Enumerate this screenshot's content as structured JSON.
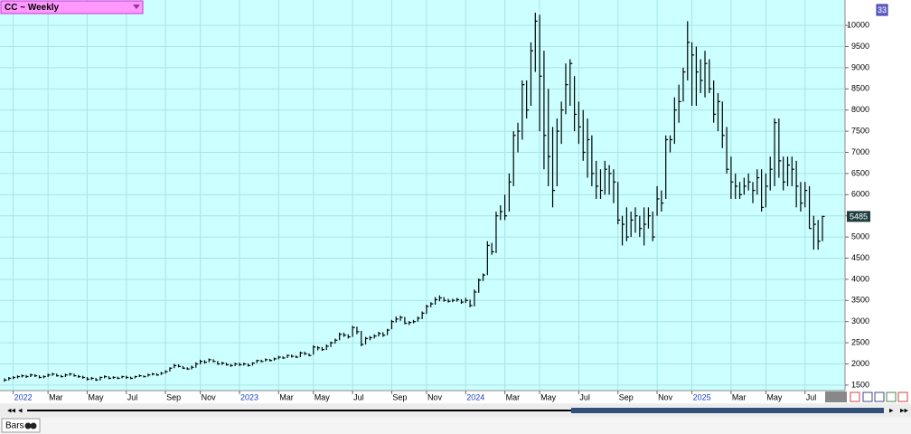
{
  "chart_data": {
    "type": "hlc",
    "title": "CC ~ Weekly",
    "badge": "33",
    "tab": "Bars",
    "color": "#000000",
    "background": "#ccffff",
    "grid": true,
    "ylim": [
      1370,
      10600
    ],
    "yticks": [
      1500,
      2000,
      2500,
      3000,
      3500,
      4000,
      4500,
      5000,
      5500,
      6000,
      6500,
      7000,
      7500,
      8000,
      8500,
      9000,
      9500,
      10000
    ],
    "xticks": [
      {
        "value": 2,
        "label": "2022"
      },
      {
        "value": 10,
        "label": "Mar"
      },
      {
        "value": 19,
        "label": "May"
      },
      {
        "value": 28,
        "label": "Jul"
      },
      {
        "value": 37,
        "label": "Sep"
      },
      {
        "value": 45,
        "label": "Nov"
      },
      {
        "value": 54,
        "label": "2023"
      },
      {
        "value": 63,
        "label": "Mar"
      },
      {
        "value": 71,
        "label": "May"
      },
      {
        "value": 80,
        "label": "Jul"
      },
      {
        "value": 89,
        "label": "Sep"
      },
      {
        "value": 97,
        "label": "Nov"
      },
      {
        "value": 106,
        "label": "2024"
      },
      {
        "value": 115,
        "label": "Mar"
      },
      {
        "value": 123,
        "label": "May"
      },
      {
        "value": 132,
        "label": "Jul"
      },
      {
        "value": 141,
        "label": "Sep"
      },
      {
        "value": 150,
        "label": "Nov"
      },
      {
        "value": 158,
        "label": "2025"
      },
      {
        "value": 167,
        "label": "Mar"
      },
      {
        "value": 175,
        "label": "May"
      },
      {
        "value": 184,
        "label": "Jul"
      }
    ],
    "high": [
      1660,
      1690,
      1710,
      1730,
      1750,
      1740,
      1770,
      1760,
      1730,
      1730,
      1770,
      1790,
      1770,
      1740,
      1770,
      1790,
      1770,
      1740,
      1720,
      1690,
      1690,
      1670,
      1700,
      1730,
      1710,
      1710,
      1700,
      1720,
      1720,
      1700,
      1720,
      1750,
      1730,
      1770,
      1790,
      1780,
      1810,
      1850,
      1920,
      2000,
      1990,
      1950,
      1920,
      1960,
      2040,
      2100,
      2090,
      2130,
      2110,
      2070,
      2050,
      2030,
      2000,
      2030,
      2030,
      2030,
      2010,
      2040,
      2100,
      2100,
      2130,
      2120,
      2150,
      2190,
      2180,
      2220,
      2220,
      2200,
      2290,
      2290,
      2250,
      2440,
      2420,
      2400,
      2460,
      2530,
      2600,
      2740,
      2740,
      2700,
      2900,
      2880,
      2780,
      2640,
      2660,
      2700,
      2760,
      2750,
      2830,
      3040,
      3120,
      3140,
      3110,
      3010,
      3040,
      3120,
      3240,
      3400,
      3460,
      3580,
      3620,
      3580,
      3540,
      3540,
      3560,
      3530,
      3560,
      3520,
      3760,
      4020,
      4140,
      4900,
      4860,
      5600,
      5750,
      6000,
      6500,
      7500,
      7700,
      8700,
      8700,
      9600,
      10300,
      10250,
      9400,
      8500,
      7600,
      7800,
      8200,
      9100,
      9200,
      8800,
      8200,
      8000,
      7800,
      7400,
      6800,
      6600,
      6800,
      6700,
      6600,
      6300,
      5500,
      5700,
      5600,
      5700,
      5500,
      5700,
      5700,
      5600,
      6200,
      6100,
      7400,
      7400,
      8300,
      8600,
      9000,
      10100,
      9600,
      9500,
      9200,
      9400,
      9200,
      8700,
      8400,
      8200,
      7600,
      6900,
      6500,
      6300,
      6400,
      6500,
      6300,
      6600,
      6600,
      6500,
      6900,
      7800,
      7800,
      6900,
      6900,
      6900,
      6800,
      6300,
      6300,
      6200,
      5500,
      5400,
      5500
    ],
    "low": [
      1580,
      1610,
      1640,
      1660,
      1680,
      1670,
      1690,
      1690,
      1660,
      1660,
      1690,
      1720,
      1700,
      1680,
      1690,
      1720,
      1700,
      1670,
      1650,
      1610,
      1620,
      1600,
      1610,
      1660,
      1640,
      1650,
      1640,
      1660,
      1650,
      1640,
      1660,
      1690,
      1680,
      1700,
      1730,
      1720,
      1740,
      1770,
      1820,
      1900,
      1920,
      1880,
      1860,
      1870,
      1910,
      1990,
      2010,
      2040,
      2040,
      1980,
      1980,
      1960,
      1930,
      1950,
      1950,
      1960,
      1940,
      1960,
      2020,
      2040,
      2060,
      2060,
      2080,
      2110,
      2120,
      2140,
      2150,
      2140,
      2160,
      2210,
      2180,
      2220,
      2320,
      2310,
      2330,
      2400,
      2480,
      2560,
      2640,
      2600,
      2640,
      2700,
      2420,
      2460,
      2560,
      2600,
      2650,
      2640,
      2680,
      2820,
      2980,
      3020,
      2940,
      2920,
      2960,
      3000,
      3060,
      3180,
      3340,
      3400,
      3480,
      3470,
      3450,
      3460,
      3470,
      3420,
      3440,
      3340,
      3360,
      3680,
      3960,
      4100,
      4580,
      4620,
      5400,
      5400,
      5600,
      6200,
      7000,
      7300,
      7800,
      8100,
      8900,
      7500,
      6600,
      6200,
      5700,
      6200,
      7200,
      7900,
      8100,
      7500,
      7200,
      6800,
      6400,
      6200,
      5900,
      5900,
      6000,
      6000,
      5800,
      5300,
      4800,
      4900,
      5000,
      5100,
      5000,
      4800,
      5200,
      4900,
      5500,
      5600,
      5900,
      7000,
      7200,
      7700,
      8200,
      8700,
      8100,
      8100,
      8400,
      8300,
      8400,
      7700,
      7500,
      7100,
      6500,
      5900,
      5900,
      5900,
      6000,
      6100,
      5800,
      6000,
      5600,
      5700,
      6100,
      6200,
      6400,
      6100,
      6200,
      6200,
      5700,
      5600,
      5700,
      5200,
      4700,
      4700,
      4900
    ],
    "close": [
      1620,
      1660,
      1680,
      1700,
      1720,
      1700,
      1740,
      1720,
      1680,
      1700,
      1740,
      1760,
      1720,
      1700,
      1740,
      1760,
      1720,
      1700,
      1680,
      1640,
      1660,
      1620,
      1680,
      1700,
      1660,
      1680,
      1660,
      1700,
      1680,
      1660,
      1700,
      1720,
      1700,
      1740,
      1760,
      1740,
      1780,
      1820,
      1900,
      1960,
      1940,
      1900,
      1880,
      1920,
      2000,
      2060,
      2040,
      2100,
      2060,
      2000,
      2020,
      1980,
      1960,
      2000,
      1980,
      2000,
      1960,
      2020,
      2080,
      2060,
      2100,
      2080,
      2120,
      2160,
      2140,
      2200,
      2180,
      2160,
      2260,
      2240,
      2200,
      2400,
      2380,
      2340,
      2420,
      2500,
      2560,
      2700,
      2680,
      2640,
      2860,
      2760,
      2460,
      2600,
      2620,
      2660,
      2720,
      2680,
      2800,
      3000,
      3060,
      3100,
      2960,
      2980,
      3000,
      3080,
      3200,
      3360,
      3420,
      3520,
      3560,
      3500,
      3480,
      3500,
      3520,
      3460,
      3500,
      3380,
      3700,
      3980,
      4100,
      4800,
      4650,
      5500,
      5600,
      5500,
      6300,
      7400,
      7500,
      8600,
      8000,
      9400,
      10100,
      8800,
      7400,
      6900,
      6100,
      7500,
      8000,
      8600,
      9100,
      7900,
      7600,
      7000,
      7300,
      6500,
      6200,
      6100,
      6600,
      6500,
      6300,
      5400,
      5300,
      5000,
      5400,
      5500,
      5200,
      5300,
      5500,
      5000,
      5900,
      5800,
      7300,
      7300,
      8000,
      8200,
      8900,
      9600,
      9300,
      8900,
      8700,
      9100,
      8500,
      7900,
      8200,
      7400,
      6600,
      6300,
      6200,
      6000,
      6200,
      6300,
      6100,
      6400,
      5700,
      6200,
      6600,
      7700,
      6800,
      6300,
      6700,
      6600,
      6200,
      5800,
      6100,
      5200,
      5300,
      4900,
      5485
    ]
  }
}
